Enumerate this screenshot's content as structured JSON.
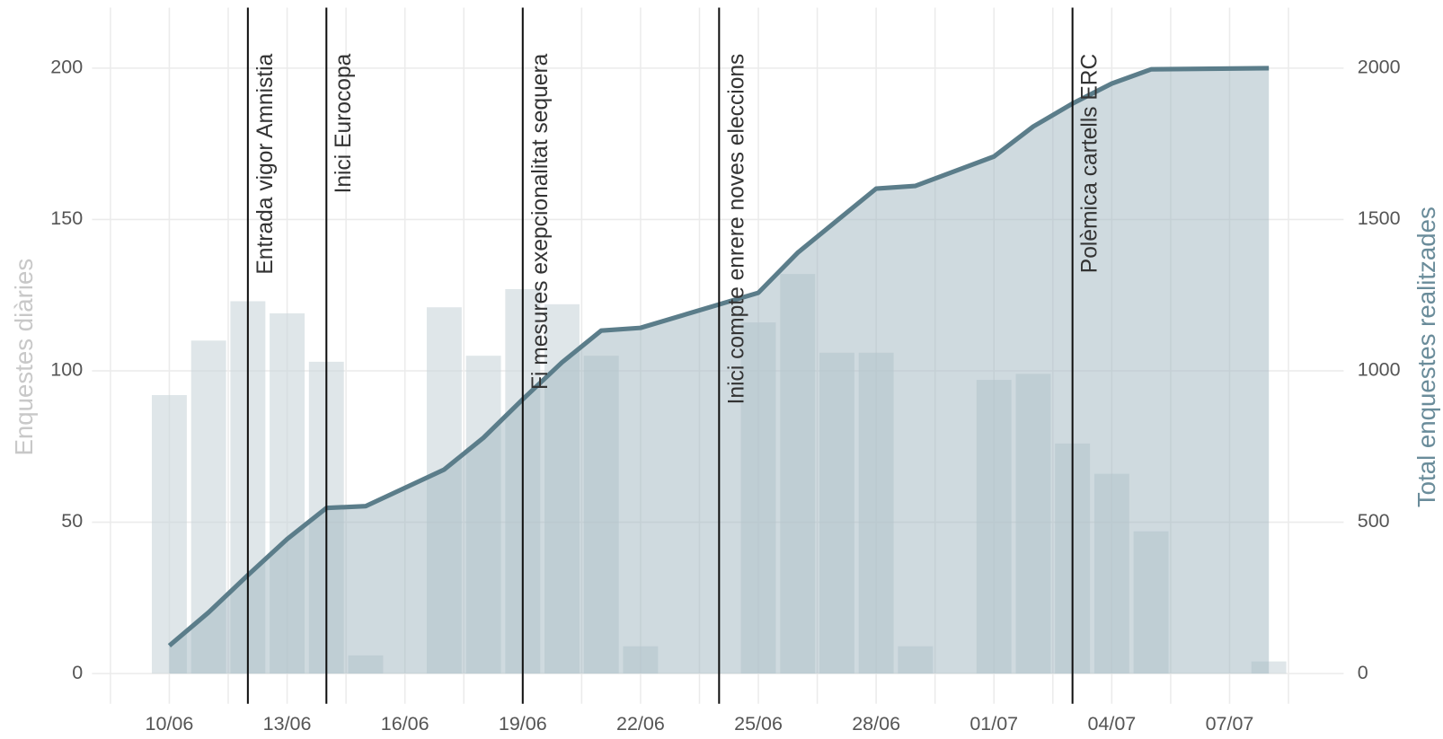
{
  "chart_data": {
    "type": "bar-line",
    "categories": [
      "10/06",
      "11/06",
      "12/06",
      "13/06",
      "14/06",
      "15/06",
      "16/06",
      "17/06",
      "18/06",
      "19/06",
      "20/06",
      "21/06",
      "22/06",
      "23/06",
      "24/06",
      "25/06",
      "26/06",
      "27/06",
      "28/06",
      "29/06",
      "30/06",
      "01/07",
      "02/07",
      "03/07",
      "04/07",
      "05/07",
      "06/07",
      "07/07",
      "08/07"
    ],
    "series": [
      {
        "name": "Enquestes diàries",
        "color": "#c9d6da",
        "values": [
          92,
          110,
          123,
          119,
          103,
          6,
          0,
          121,
          105,
          127,
          122,
          105,
          9,
          0,
          0,
          116,
          132,
          106,
          106,
          9,
          0,
          97,
          99,
          76,
          66,
          47,
          0,
          0,
          4
        ]
      },
      {
        "name": "Total enquestes realitzades",
        "color": "#5b7d8a",
        "axis": "y2",
        "x": [
          "10/06",
          "11/06",
          "12/06",
          "13/06",
          "14/06",
          "15/06",
          "17/06",
          "18/06",
          "19/06",
          "20/06",
          "21/06",
          "22/06",
          "25/06",
          "26/06",
          "27/06",
          "28/06",
          "29/06",
          "01/07",
          "02/07",
          "03/07",
          "04/07",
          "05/07",
          "08/07"
        ],
        "values": [
          92,
          202,
          325,
          444,
          547,
          553,
          674,
          779,
          906,
          1028,
          1133,
          1142,
          1258,
          1390,
          1496,
          1602,
          1611,
          1708,
          1807,
          1883,
          1949,
          1996,
          2000
        ]
      }
    ],
    "ylabel": "Enquestes diàries",
    "y2label": "Total enquestes realitzades",
    "ylim": [
      -10,
      220
    ],
    "yticks": [
      0,
      50,
      100,
      150,
      200
    ],
    "y2lim": [
      -100,
      2200
    ],
    "y2ticks": [
      0,
      500,
      1000,
      1500,
      2000
    ],
    "xticks": [
      "10/06",
      "13/06",
      "16/06",
      "19/06",
      "22/06",
      "25/06",
      "28/06",
      "01/07",
      "04/07",
      "07/07"
    ],
    "events": [
      {
        "date": "12/06",
        "label": "Entrada vigor Amnistia"
      },
      {
        "date": "14/06",
        "label": "Inici Eurocopa"
      },
      {
        "date": "19/06",
        "label": "Fi mesures exepcionalitat sequera"
      },
      {
        "date": "24/06",
        "label": "Inici compte enrere noves eleccions"
      },
      {
        "date": "03/07",
        "label": "Polèmica cartells ERC"
      }
    ],
    "grid": true
  }
}
